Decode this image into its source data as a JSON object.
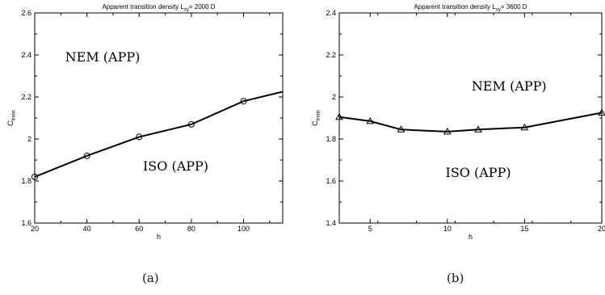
{
  "chart_data": [
    {
      "type": "line",
      "title": "Apparent transition density L",
      "title_sub": "xy",
      "title_suffix": "= 2000 D",
      "xlabel": "h",
      "ylabel": "C",
      "ylabel_sub": "trans",
      "xlim": [
        20,
        115
      ],
      "ylim": [
        1.6,
        2.6
      ],
      "xticks": [
        20,
        40,
        60,
        80,
        100
      ],
      "xtick_labels": [
        "20",
        "40",
        "60",
        "80",
        "100"
      ],
      "yticks": [
        1.6,
        1.8,
        2.0,
        2.2,
        2.4,
        2.6
      ],
      "ytick_labels": [
        "1.6",
        "1.8",
        "2",
        "2.2",
        "2.4",
        "2.6"
      ],
      "grid": false,
      "marker": "circle",
      "series": [
        {
          "x": [
            20,
            40,
            60,
            80,
            100,
            115
          ],
          "y": [
            1.82,
            1.92,
            2.01,
            2.07,
            2.18,
            2.225
          ],
          "marker_count": 5
        }
      ],
      "annotations": [
        {
          "text": "NEM (APP)",
          "x": 46,
          "y": 2.37
        },
        {
          "text": "ISO (APP)",
          "x": 74,
          "y": 1.85
        }
      ],
      "caption": "(a)"
    },
    {
      "type": "line",
      "title": "Apparent transition density L",
      "title_sub": "xy",
      "title_suffix": "= 3600 D",
      "xlabel": "h",
      "ylabel": "C",
      "ylabel_sub": "trans",
      "xlim": [
        3,
        20
      ],
      "ylim": [
        1.4,
        2.4
      ],
      "xticks": [
        5,
        10,
        15,
        20
      ],
      "xtick_labels": [
        "5",
        "10",
        "15",
        "20"
      ],
      "yticks": [
        1.4,
        1.6,
        1.8,
        2.0,
        2.2,
        2.4
      ],
      "ytick_labels": [
        "1.4",
        "1.6",
        "1.8",
        "2",
        "2.2",
        "2.4"
      ],
      "grid": false,
      "marker": "triangle",
      "series": [
        {
          "x": [
            3,
            5,
            7,
            10,
            12,
            15,
            20
          ],
          "y": [
            1.905,
            1.885,
            1.845,
            1.835,
            1.845,
            1.855,
            1.925
          ],
          "marker_count": 7
        }
      ],
      "annotations": [
        {
          "text": "NEM (APP)",
          "x": 14,
          "y": 2.03
        },
        {
          "text": "ISO (APP)",
          "x": 12,
          "y": 1.62
        }
      ],
      "caption": "(b)"
    }
  ]
}
